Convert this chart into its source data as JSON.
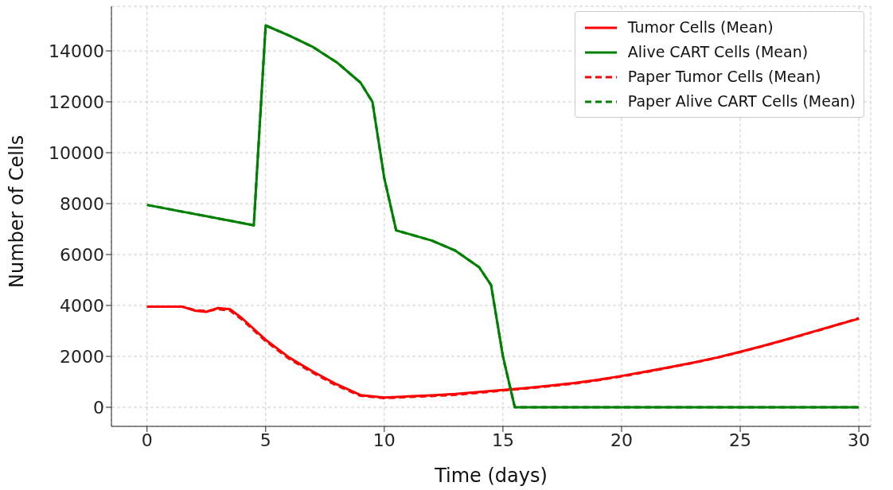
{
  "chart_data": {
    "type": "line",
    "xlabel": "Time (days)",
    "ylabel": "Number of Cells",
    "xlim": [
      -1.5,
      30.5
    ],
    "xticks": [
      0,
      5,
      10,
      15,
      20,
      25,
      30
    ],
    "ylim": [
      -750,
      15750
    ],
    "yticks": [
      0,
      2000,
      4000,
      6000,
      8000,
      10000,
      12000,
      14000
    ],
    "grid": true,
    "legend": "top right",
    "marker": "none",
    "series": [
      {
        "name": "Tumor Cells (Mean)",
        "color": "#ff0000",
        "line_style": "solid",
        "x": [
          0,
          1.5,
          2,
          2.5,
          3,
          3.5,
          4,
          5,
          6,
          7,
          8,
          9,
          10,
          11,
          12,
          13,
          14,
          15,
          16,
          17,
          18,
          19,
          20,
          21,
          22,
          23,
          24,
          25,
          26,
          27,
          28,
          29,
          30
        ],
        "values": [
          3950,
          3950,
          3800,
          3750,
          3900,
          3850,
          3500,
          2650,
          1950,
          1400,
          900,
          480,
          380,
          430,
          470,
          520,
          600,
          680,
          760,
          850,
          950,
          1080,
          1230,
          1400,
          1570,
          1750,
          1950,
          2180,
          2420,
          2680,
          2950,
          3220,
          3480
        ]
      },
      {
        "name": "Alive CART Cells (Mean)",
        "color": "#008000",
        "line_style": "solid",
        "x": [
          0,
          4.5,
          5,
          6,
          7,
          8,
          9,
          9.5,
          10,
          10.5,
          12,
          13,
          14,
          14.5,
          15,
          15.5,
          30
        ],
        "values": [
          7950,
          7150,
          15000,
          14600,
          14150,
          13550,
          12750,
          12000,
          9000,
          6950,
          6550,
          6150,
          5500,
          4800,
          2000,
          0,
          0
        ]
      },
      {
        "name": "Paper Tumor Cells (Mean)",
        "color": "#ff0000",
        "line_style": "dashed",
        "x": [
          0,
          1.5,
          2,
          2.5,
          3,
          3.5,
          4,
          5,
          6,
          7,
          8,
          9,
          10,
          11,
          12,
          13,
          14,
          15,
          16,
          17,
          18,
          19,
          20,
          21,
          22,
          23,
          24,
          25,
          26,
          27,
          28,
          29,
          30
        ],
        "values": [
          3950,
          3950,
          3820,
          3780,
          3850,
          3800,
          3450,
          2600,
          1900,
          1350,
          850,
          450,
          360,
          400,
          440,
          490,
          570,
          660,
          740,
          830,
          930,
          1060,
          1210,
          1380,
          1560,
          1740,
          1940,
          2170,
          2410,
          2670,
          2940,
          3210,
          3500
        ]
      },
      {
        "name": "Paper Alive CART Cells (Mean)",
        "color": "#008000",
        "line_style": "dashed",
        "x": [
          0,
          4.5,
          5,
          6,
          7,
          8,
          9,
          9.5,
          10,
          10.5,
          12,
          13,
          14,
          14.5,
          15,
          15.5,
          30
        ],
        "values": [
          7950,
          7150,
          15000,
          14600,
          14150,
          13550,
          12750,
          12000,
          9000,
          6950,
          6550,
          6150,
          5500,
          4800,
          2000,
          0,
          0
        ]
      }
    ]
  }
}
